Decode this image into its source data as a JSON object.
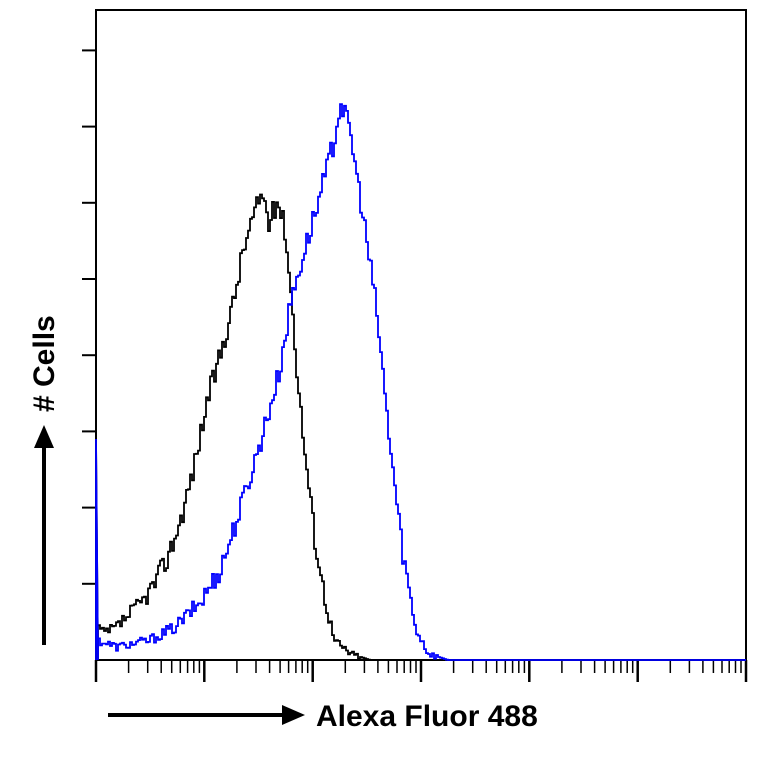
{
  "chart_data": {
    "type": "line",
    "title": "",
    "xlabel": "Alexa Fluor 488",
    "ylabel": "# Cells",
    "x_scale": "log",
    "xlim": [
      0,
      1
    ],
    "ylim": [
      0,
      1
    ],
    "grid": false,
    "legend": "none",
    "series": [
      {
        "color": "#000000",
        "points": [
          [
            0.0,
            0.0
          ],
          [
            0.003,
            0.05
          ],
          [
            0.01,
            0.04
          ],
          [
            0.03,
            0.05
          ],
          [
            0.05,
            0.07
          ],
          [
            0.07,
            0.09
          ],
          [
            0.09,
            0.12
          ],
          [
            0.11,
            0.16
          ],
          [
            0.13,
            0.22
          ],
          [
            0.15,
            0.3
          ],
          [
            0.17,
            0.4
          ],
          [
            0.19,
            0.47
          ],
          [
            0.21,
            0.55
          ],
          [
            0.225,
            0.63
          ],
          [
            0.24,
            0.68
          ],
          [
            0.255,
            0.72
          ],
          [
            0.265,
            0.67
          ],
          [
            0.278,
            0.71
          ],
          [
            0.29,
            0.66
          ],
          [
            0.3,
            0.55
          ],
          [
            0.31,
            0.42
          ],
          [
            0.32,
            0.32
          ],
          [
            0.335,
            0.19
          ],
          [
            0.35,
            0.1
          ],
          [
            0.365,
            0.03
          ],
          [
            0.39,
            0.01
          ],
          [
            0.42,
            0.0
          ],
          [
            1.0,
            0.0
          ]
        ]
      },
      {
        "color": "#0000ff",
        "points": [
          [
            0.0,
            0.0
          ],
          [
            0.003,
            0.03
          ],
          [
            0.03,
            0.02
          ],
          [
            0.08,
            0.03
          ],
          [
            0.12,
            0.05
          ],
          [
            0.16,
            0.09
          ],
          [
            0.19,
            0.14
          ],
          [
            0.22,
            0.23
          ],
          [
            0.25,
            0.33
          ],
          [
            0.28,
            0.44
          ],
          [
            0.3,
            0.56
          ],
          [
            0.325,
            0.65
          ],
          [
            0.345,
            0.72
          ],
          [
            0.365,
            0.8
          ],
          [
            0.375,
            0.86
          ],
          [
            0.39,
            0.81
          ],
          [
            0.41,
            0.68
          ],
          [
            0.43,
            0.54
          ],
          [
            0.45,
            0.34
          ],
          [
            0.47,
            0.17
          ],
          [
            0.49,
            0.05
          ],
          [
            0.51,
            0.01
          ],
          [
            0.54,
            0.0
          ],
          [
            1.0,
            0.0
          ]
        ]
      }
    ]
  }
}
